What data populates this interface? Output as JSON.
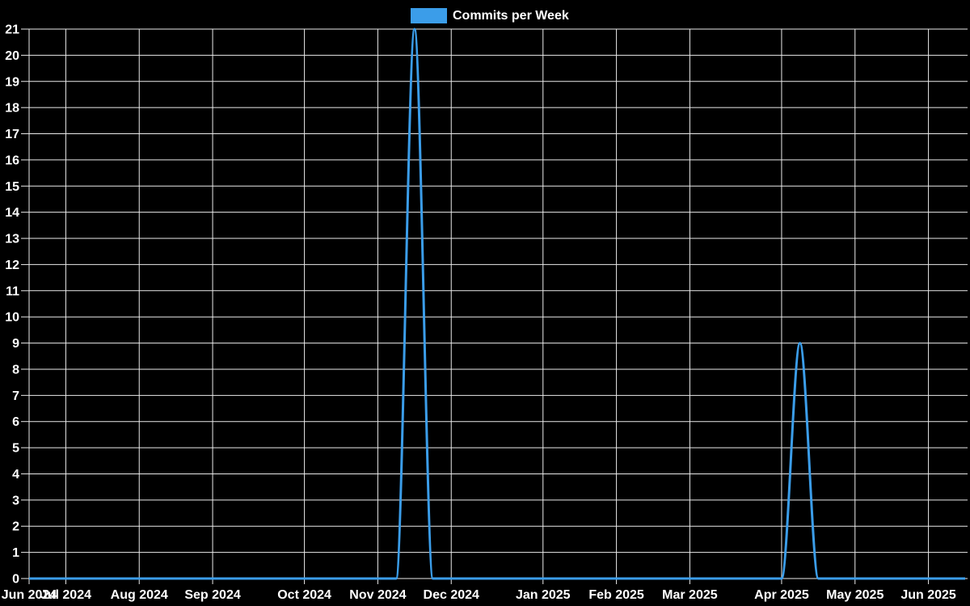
{
  "chart": {
    "legend": {
      "label": "Commits per Week",
      "position": "top-center"
    },
    "colors": {
      "line": "#3B9DE9",
      "background": "#000000",
      "grid": "#EAEAEA",
      "text": "#FFFFFF"
    }
  },
  "chart_data": {
    "type": "line",
    "title": "Commits per Week",
    "x_unit": "week",
    "line_interpolation": "monotone",
    "grid": true,
    "legend_position": "top-center",
    "ylim": [
      0,
      21
    ],
    "y_tick_step": 1,
    "x": [
      "2024-06-23",
      "2024-06-30",
      "2024-07-07",
      "2024-07-14",
      "2024-07-21",
      "2024-07-28",
      "2024-08-04",
      "2024-08-11",
      "2024-08-18",
      "2024-08-25",
      "2024-09-01",
      "2024-09-08",
      "2024-09-15",
      "2024-09-22",
      "2024-09-29",
      "2024-10-06",
      "2024-10-13",
      "2024-10-20",
      "2024-10-27",
      "2024-11-03",
      "2024-11-10",
      "2024-11-17",
      "2024-11-24",
      "2024-12-01",
      "2024-12-08",
      "2024-12-15",
      "2024-12-22",
      "2024-12-29",
      "2025-01-05",
      "2025-01-12",
      "2025-01-19",
      "2025-01-26",
      "2025-02-02",
      "2025-02-09",
      "2025-02-16",
      "2025-02-23",
      "2025-03-02",
      "2025-03-09",
      "2025-03-16",
      "2025-03-23",
      "2025-03-30",
      "2025-04-06",
      "2025-04-13",
      "2025-04-20",
      "2025-04-27",
      "2025-05-04",
      "2025-05-11",
      "2025-05-18",
      "2025-05-25",
      "2025-06-01",
      "2025-06-08",
      "2025-06-15"
    ],
    "values": [
      0,
      0,
      0,
      0,
      0,
      0,
      0,
      0,
      0,
      0,
      0,
      0,
      0,
      0,
      0,
      0,
      0,
      0,
      0,
      0,
      0,
      21,
      0,
      0,
      0,
      0,
      0,
      0,
      0,
      0,
      0,
      0,
      0,
      0,
      0,
      0,
      0,
      0,
      0,
      0,
      0,
      0,
      9,
      0,
      0,
      0,
      0,
      0,
      0,
      0,
      0,
      0
    ],
    "x_ticks": [
      {
        "label": "Jun 2024",
        "index": 0
      },
      {
        "label": "Jul 2024",
        "index": 2
      },
      {
        "label": "Aug 2024",
        "index": 6
      },
      {
        "label": "Sep 2024",
        "index": 10
      },
      {
        "label": "Oct 2024",
        "index": 15
      },
      {
        "label": "Nov 2024",
        "index": 19
      },
      {
        "label": "Dec 2024",
        "index": 23
      },
      {
        "label": "Jan 2025",
        "index": 28
      },
      {
        "label": "Feb 2025",
        "index": 32
      },
      {
        "label": "Mar 2025",
        "index": 36
      },
      {
        "label": "Apr 2025",
        "index": 41
      },
      {
        "label": "May 2025",
        "index": 45
      },
      {
        "label": "Jun 2025",
        "index": 49
      }
    ],
    "peaks": [
      {
        "week_of": "2024-11-17",
        "value": 21
      },
      {
        "week_of": "2025-04-13",
        "value": 9
      }
    ]
  }
}
